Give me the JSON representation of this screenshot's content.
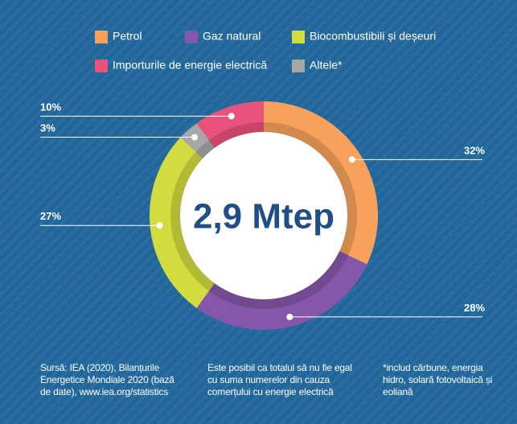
{
  "chart_data": {
    "type": "donut",
    "center_label": "2,9 Mtep",
    "categories": [
      "Petrol",
      "Gaz natural",
      "Biocombustibili și deșeuri",
      "Altele*",
      "Importurile de energie electrică"
    ],
    "values": [
      32,
      28,
      27,
      3,
      10
    ],
    "value_labels": [
      "32%",
      "28%",
      "27%",
      "3%",
      "10%"
    ],
    "colors": [
      "#f7a15c",
      "#8557aa",
      "#d3dc3e",
      "#a7a7a7",
      "#e9527c"
    ]
  },
  "notes": {
    "source": "Sursă: IEA (2020), Bilanțurile Energetice Mondiale 2020 (bază de date), www.iea.org/statistics",
    "caveat": "Este posibil ca totalul să nu fie egal cu suma numerelor din cauza comerțului cu energie electrică",
    "footnote": "*includ cărbune, energia hidro, solară fotovoltaică și eoliană"
  }
}
